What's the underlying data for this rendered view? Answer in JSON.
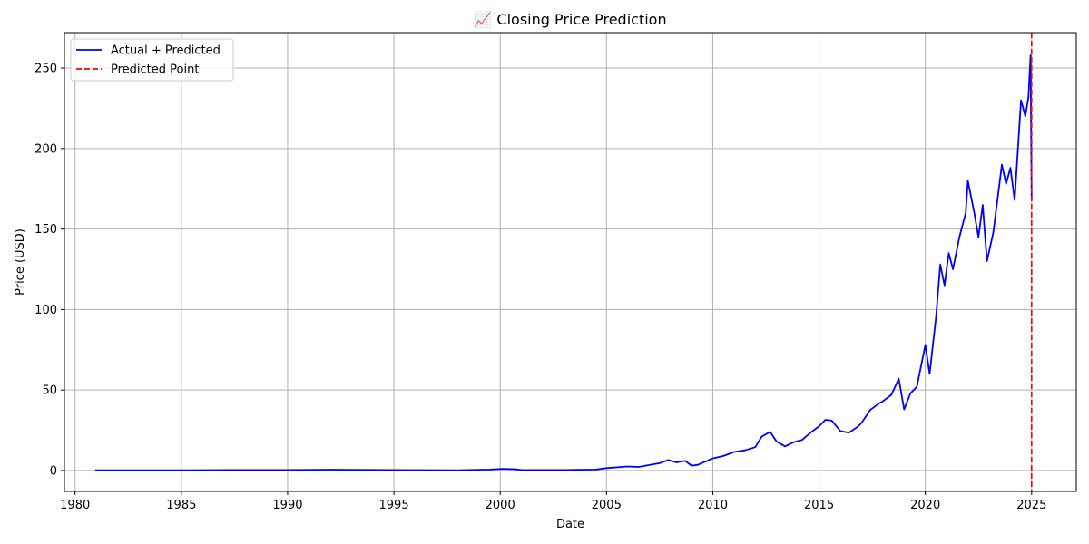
{
  "chart_data": {
    "type": "line",
    "title": "📈 Closing Price Prediction",
    "xlabel": "Date",
    "ylabel": "Price (USD)",
    "xlim": [
      1979.5,
      2027.1
    ],
    "ylim": [
      -13,
      272
    ],
    "x_ticks": [
      "1980",
      "1985",
      "1990",
      "1995",
      "2000",
      "2005",
      "2010",
      "2015",
      "2020",
      "2025"
    ],
    "y_ticks": [
      "0",
      "50",
      "100",
      "150",
      "200",
      "250"
    ],
    "grid": true,
    "legend_position": "top-left",
    "series": [
      {
        "name": "Actual + Predicted",
        "color": "#0000ff",
        "style": "solid",
        "points": [
          [
            1980.95,
            0.1
          ],
          [
            1985,
            0.1
          ],
          [
            1987.5,
            0.3
          ],
          [
            1990,
            0.3
          ],
          [
            1992,
            0.5
          ],
          [
            1995,
            0.3
          ],
          [
            1998,
            0.2
          ],
          [
            1999.5,
            0.6
          ],
          [
            2000.1,
            1.0
          ],
          [
            2000.7,
            0.8
          ],
          [
            2001,
            0.3
          ],
          [
            2003,
            0.3
          ],
          [
            2004.5,
            0.6
          ],
          [
            2005,
            1.5
          ],
          [
            2006,
            2.5
          ],
          [
            2006.5,
            2.2
          ],
          [
            2007.5,
            4.5
          ],
          [
            2007.9,
            6.5
          ],
          [
            2008.3,
            5.0
          ],
          [
            2008.7,
            6.0
          ],
          [
            2009.0,
            3.0
          ],
          [
            2009.3,
            3.5
          ],
          [
            2010,
            7.5
          ],
          [
            2010.5,
            9.0
          ],
          [
            2011,
            11.5
          ],
          [
            2011.5,
            12.5
          ],
          [
            2012,
            14.5
          ],
          [
            2012.3,
            21.0
          ],
          [
            2012.7,
            24.0
          ],
          [
            2013,
            18.0
          ],
          [
            2013.4,
            15.0
          ],
          [
            2013.8,
            17.5
          ],
          [
            2014.2,
            19.0
          ],
          [
            2014.6,
            23.5
          ],
          [
            2015,
            27.5
          ],
          [
            2015.3,
            31.5
          ],
          [
            2015.6,
            31.0
          ],
          [
            2016,
            24.5
          ],
          [
            2016.4,
            23.5
          ],
          [
            2016.8,
            27.0
          ],
          [
            2017,
            29.5
          ],
          [
            2017.4,
            37.5
          ],
          [
            2017.8,
            41.5
          ],
          [
            2018,
            43.0
          ],
          [
            2018.4,
            47.0
          ],
          [
            2018.75,
            57.0
          ],
          [
            2019,
            38.0
          ],
          [
            2019.3,
            48.0
          ],
          [
            2019.6,
            52.0
          ],
          [
            2020,
            78.0
          ],
          [
            2020.2,
            60.0
          ],
          [
            2020.5,
            95.0
          ],
          [
            2020.7,
            128.0
          ],
          [
            2020.9,
            115.0
          ],
          [
            2021.1,
            135.0
          ],
          [
            2021.3,
            125.0
          ],
          [
            2021.6,
            145.0
          ],
          [
            2021.9,
            160.0
          ],
          [
            2022.0,
            180.0
          ],
          [
            2022.3,
            160.0
          ],
          [
            2022.5,
            145.0
          ],
          [
            2022.7,
            165.0
          ],
          [
            2022.9,
            130.0
          ],
          [
            2023.2,
            148.0
          ],
          [
            2023.6,
            190.0
          ],
          [
            2023.8,
            178.0
          ],
          [
            2024.0,
            188.0
          ],
          [
            2024.2,
            168.0
          ],
          [
            2024.5,
            230.0
          ],
          [
            2024.7,
            220.0
          ],
          [
            2024.85,
            232.0
          ],
          [
            2024.95,
            258.0
          ],
          [
            2025.0,
            168.0
          ]
        ]
      },
      {
        "name": "Predicted Point",
        "color": "#ff0000",
        "style": "dashed",
        "vertical_x": 2025.0
      }
    ]
  }
}
